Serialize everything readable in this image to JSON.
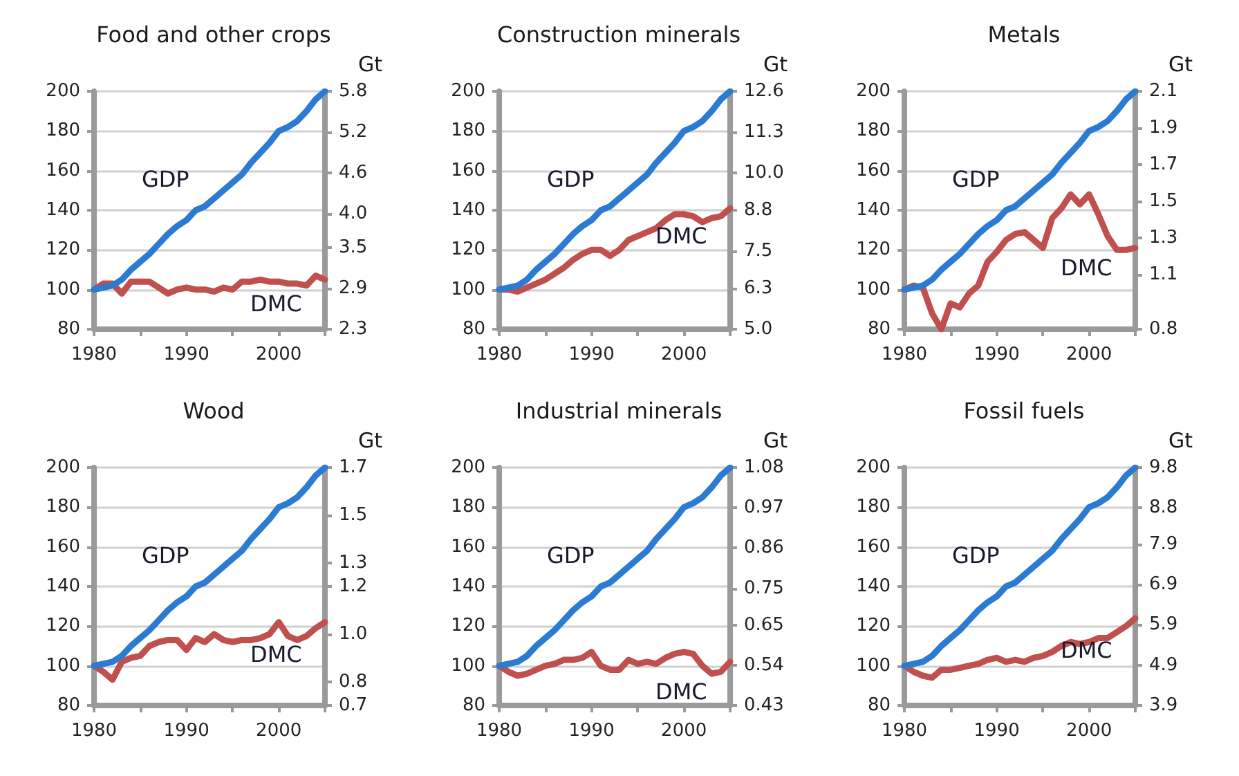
{
  "chart_data": [
    {
      "type": "line",
      "title": "Food and other crops",
      "y2label": "Gt",
      "x": [
        1980,
        1981,
        1982,
        1983,
        1984,
        1985,
        1986,
        1987,
        1988,
        1989,
        1990,
        1991,
        1992,
        1993,
        1994,
        1995,
        1996,
        1997,
        1998,
        1999,
        2000,
        2001,
        2002,
        2003,
        2004,
        2005
      ],
      "xlim": [
        1980,
        2005
      ],
      "xticks": [
        1980,
        {
          "value": 1985,
          "label": null
        },
        1990,
        {
          "value": 1995,
          "label": null
        },
        2000,
        {
          "value": 2005,
          "label": null
        }
      ],
      "ylim": [
        80,
        200
      ],
      "yticks": [
        80,
        100,
        120,
        140,
        160,
        180,
        200
      ],
      "y2lim": [
        2.3,
        5.8
      ],
      "y2ticks": [
        2.3,
        2.9,
        3.5,
        {
          "value": 4.0,
          "label": "4.0"
        },
        4.6,
        5.2,
        5.8
      ],
      "grid": "y",
      "marker": "none",
      "line_style": "solid",
      "series": [
        {
          "name": "GDP",
          "color": "#2b7bd2",
          "values": [
            100,
            101,
            102,
            105,
            110,
            114,
            118,
            123,
            128,
            132,
            135,
            140,
            142,
            146,
            150,
            154,
            158,
            164,
            169,
            174,
            180,
            182,
            185,
            190,
            196,
            200
          ]
        },
        {
          "name": "DMC",
          "color": "#c0504d",
          "values": [
            100,
            103,
            103,
            98,
            104,
            104,
            104,
            101,
            98,
            100,
            101,
            100,
            100,
            99,
            101,
            100,
            104,
            104,
            105,
            104,
            104,
            103,
            103,
            102,
            107,
            105
          ]
        }
      ]
    },
    {
      "type": "line",
      "title": "Construction minerals",
      "y2label": "Gt",
      "x": [
        1980,
        1981,
        1982,
        1983,
        1984,
        1985,
        1986,
        1987,
        1988,
        1989,
        1990,
        1991,
        1992,
        1993,
        1994,
        1995,
        1996,
        1997,
        1998,
        1999,
        2000,
        2001,
        2002,
        2003,
        2004,
        2005
      ],
      "xlim": [
        1980,
        2005
      ],
      "xticks": [
        1980,
        {
          "value": 1985,
          "label": null
        },
        1990,
        {
          "value": 1995,
          "label": null
        },
        2000,
        {
          "value": 2005,
          "label": null
        }
      ],
      "ylim": [
        80,
        200
      ],
      "yticks": [
        80,
        100,
        120,
        140,
        160,
        180,
        200
      ],
      "y2lim": [
        5.0,
        12.6
      ],
      "y2ticks": [
        {
          "value": 5.0,
          "label": "5.0"
        },
        6.3,
        7.5,
        8.8,
        {
          "value": 10.0,
          "label": "10.0"
        },
        11.3,
        12.6
      ],
      "grid": "y",
      "marker": "none",
      "line_style": "solid",
      "series": [
        {
          "name": "GDP",
          "color": "#2b7bd2",
          "values": [
            100,
            101,
            102,
            105,
            110,
            114,
            118,
            123,
            128,
            132,
            135,
            140,
            142,
            146,
            150,
            154,
            158,
            164,
            169,
            174,
            180,
            182,
            185,
            190,
            196,
            200
          ]
        },
        {
          "name": "DMC",
          "color": "#c0504d",
          "values": [
            100,
            100,
            99,
            101,
            103,
            105,
            108,
            111,
            115,
            118,
            120,
            120,
            117,
            120,
            125,
            127,
            129,
            131,
            135,
            138,
            138,
            137,
            134,
            136,
            137,
            141
          ]
        }
      ]
    },
    {
      "type": "line",
      "title": "Metals",
      "y2label": "Gt",
      "x": [
        1980,
        1981,
        1982,
        1983,
        1984,
        1985,
        1986,
        1987,
        1988,
        1989,
        1990,
        1991,
        1992,
        1993,
        1994,
        1995,
        1996,
        1997,
        1998,
        1999,
        2000,
        2001,
        2002,
        2003,
        2004,
        2005
      ],
      "xlim": [
        1980,
        2005
      ],
      "xticks": [
        1980,
        {
          "value": 1985,
          "label": null
        },
        1990,
        {
          "value": 1995,
          "label": null
        },
        2000,
        {
          "value": 2005,
          "label": null
        }
      ],
      "ylim": [
        80,
        200
      ],
      "yticks": [
        80,
        100,
        120,
        140,
        160,
        180,
        200
      ],
      "y2lim": [
        0.8,
        2.1
      ],
      "y2ticks": [
        0.8,
        1.1,
        1.3,
        1.5,
        1.7,
        1.9,
        2.1
      ],
      "grid": "y",
      "marker": "none",
      "line_style": "solid",
      "series": [
        {
          "name": "GDP",
          "color": "#2b7bd2",
          "values": [
            100,
            101,
            102,
            105,
            110,
            114,
            118,
            123,
            128,
            132,
            135,
            140,
            142,
            146,
            150,
            154,
            158,
            164,
            169,
            174,
            180,
            182,
            185,
            190,
            196,
            200
          ]
        },
        {
          "name": "DMC",
          "color": "#c0504d",
          "values": [
            100,
            102,
            101,
            88,
            80,
            93,
            91,
            98,
            102,
            114,
            119,
            125,
            128,
            129,
            125,
            121,
            136,
            141,
            148,
            143,
            148,
            138,
            127,
            120,
            120,
            121
          ]
        }
      ]
    },
    {
      "type": "line",
      "title": "Wood",
      "y2label": "Gt",
      "x": [
        1980,
        1981,
        1982,
        1983,
        1984,
        1985,
        1986,
        1987,
        1988,
        1989,
        1990,
        1991,
        1992,
        1993,
        1994,
        1995,
        1996,
        1997,
        1998,
        1999,
        2000,
        2001,
        2002,
        2003,
        2004,
        2005
      ],
      "xlim": [
        1980,
        2005
      ],
      "xticks": [
        1980,
        {
          "value": 1985,
          "label": null
        },
        1990,
        {
          "value": 1995,
          "label": null
        },
        2000,
        {
          "value": 2005,
          "label": null
        }
      ],
      "ylim": [
        80,
        200
      ],
      "yticks": [
        80,
        100,
        120,
        140,
        160,
        180,
        200
      ],
      "y2lim": [
        0.7,
        1.7
      ],
      "y2ticks": [
        0.7,
        0.8,
        {
          "value": 1.0,
          "label": "1.0"
        },
        1.2,
        1.3,
        1.5,
        1.7
      ],
      "grid": "y",
      "marker": "none",
      "line_style": "solid",
      "series": [
        {
          "name": "GDP",
          "color": "#2b7bd2",
          "values": [
            100,
            101,
            102,
            105,
            110,
            114,
            118,
            123,
            128,
            132,
            135,
            140,
            142,
            146,
            150,
            154,
            158,
            164,
            169,
            174,
            180,
            182,
            185,
            190,
            196,
            200
          ]
        },
        {
          "name": "DMC",
          "color": "#c0504d",
          "values": [
            100,
            97,
            93,
            102,
            104,
            105,
            110,
            112,
            113,
            113,
            108,
            114,
            112,
            116,
            113,
            112,
            113,
            113,
            114,
            116,
            122,
            115,
            113,
            115,
            119,
            122
          ]
        }
      ]
    },
    {
      "type": "line",
      "title": "Industrial minerals",
      "y2label": "Gt",
      "x": [
        1980,
        1981,
        1982,
        1983,
        1984,
        1985,
        1986,
        1987,
        1988,
        1989,
        1990,
        1991,
        1992,
        1993,
        1994,
        1995,
        1996,
        1997,
        1998,
        1999,
        2000,
        2001,
        2002,
        2003,
        2004,
        2005
      ],
      "xlim": [
        1980,
        2005
      ],
      "xticks": [
        1980,
        {
          "value": 1985,
          "label": null
        },
        1990,
        {
          "value": 1995,
          "label": null
        },
        2000,
        {
          "value": 2005,
          "label": null
        }
      ],
      "ylim": [
        80,
        200
      ],
      "yticks": [
        80,
        100,
        120,
        140,
        160,
        180,
        200
      ],
      "y2lim": [
        0.43,
        1.08
      ],
      "y2ticks": [
        0.43,
        0.54,
        0.65,
        0.75,
        0.86,
        0.97,
        1.08
      ],
      "grid": "y",
      "marker": "none",
      "line_style": "solid",
      "series": [
        {
          "name": "GDP",
          "color": "#2b7bd2",
          "values": [
            100,
            101,
            102,
            105,
            110,
            114,
            118,
            123,
            128,
            132,
            135,
            140,
            142,
            146,
            150,
            154,
            158,
            164,
            169,
            174,
            180,
            182,
            185,
            190,
            196,
            200
          ]
        },
        {
          "name": "DMC",
          "color": "#c0504d",
          "values": [
            100,
            97,
            95,
            96,
            98,
            100,
            101,
            103,
            103,
            104,
            107,
            100,
            98,
            98,
            103,
            101,
            102,
            101,
            104,
            106,
            107,
            106,
            100,
            96,
            97,
            102
          ]
        }
      ]
    },
    {
      "type": "line",
      "title": "Fossil fuels",
      "y2label": "Gt",
      "x": [
        1980,
        1981,
        1982,
        1983,
        1984,
        1985,
        1986,
        1987,
        1988,
        1989,
        1990,
        1991,
        1992,
        1993,
        1994,
        1995,
        1996,
        1997,
        1998,
        1999,
        2000,
        2001,
        2002,
        2003,
        2004,
        2005
      ],
      "xlim": [
        1980,
        2005
      ],
      "xticks": [
        1980,
        {
          "value": 1985,
          "label": null
        },
        1990,
        {
          "value": 1995,
          "label": null
        },
        2000,
        {
          "value": 2005,
          "label": null
        }
      ],
      "ylim": [
        80,
        200
      ],
      "yticks": [
        80,
        100,
        120,
        140,
        160,
        180,
        200
      ],
      "y2lim": [
        3.9,
        9.8
      ],
      "y2ticks": [
        3.9,
        4.9,
        5.9,
        6.9,
        7.9,
        8.8,
        9.8
      ],
      "grid": "y",
      "marker": "none",
      "line_style": "solid",
      "series": [
        {
          "name": "GDP",
          "color": "#2b7bd2",
          "values": [
            100,
            101,
            102,
            105,
            110,
            114,
            118,
            123,
            128,
            132,
            135,
            140,
            142,
            146,
            150,
            154,
            158,
            164,
            169,
            174,
            180,
            182,
            185,
            190,
            196,
            200
          ]
        },
        {
          "name": "DMC",
          "color": "#c0504d",
          "values": [
            100,
            97,
            95,
            94,
            98,
            98,
            99,
            100,
            101,
            103,
            104,
            102,
            103,
            102,
            104,
            105,
            107,
            110,
            112,
            111,
            112,
            114,
            114,
            117,
            120,
            124
          ]
        }
      ]
    }
  ]
}
